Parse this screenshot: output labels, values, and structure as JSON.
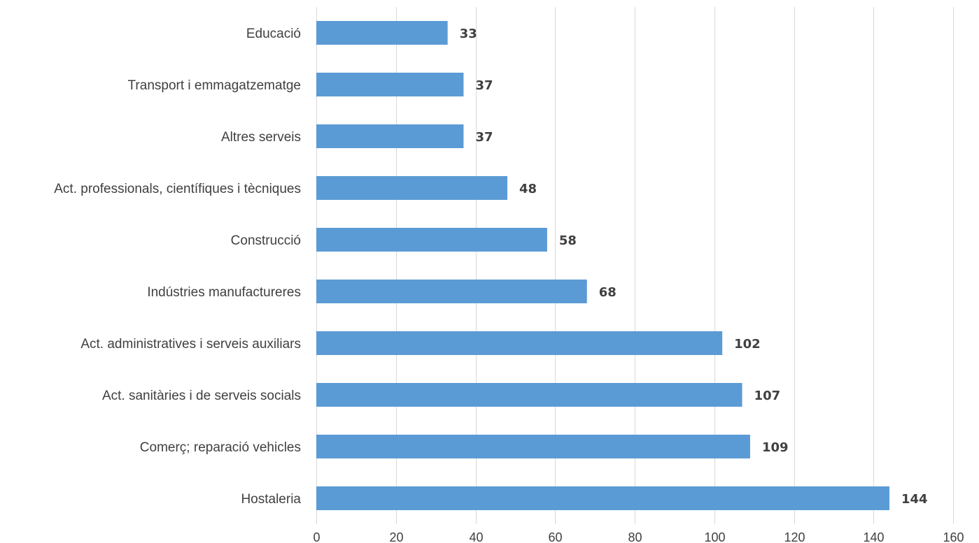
{
  "chart_data": {
    "type": "bar",
    "orientation": "horizontal",
    "categories": [
      "Educació",
      "Transport i emmagatzematge",
      "Altres serveis",
      "Act. professionals, científiques i tècniques",
      "Construcció",
      "Indústries manufactureres",
      "Act. administratives i serveis auxiliars",
      "Act. sanitàries i de serveis socials",
      "Comerç; reparació vehicles",
      "Hostaleria"
    ],
    "values": [
      33,
      37,
      37,
      48,
      58,
      68,
      102,
      107,
      109,
      144
    ],
    "value_labels": [
      "33",
      "37",
      "37",
      "48",
      "58",
      "68",
      "102",
      "107",
      "109",
      "144"
    ],
    "xlim": [
      0,
      160
    ],
    "x_ticks": [
      "0",
      "20",
      "40",
      "60",
      "80",
      "100",
      "120",
      "140",
      "160"
    ],
    "grid": "vertical",
    "legend": "none",
    "bar_color": "#5b9bd5",
    "title": "",
    "xlabel": "",
    "ylabel": ""
  }
}
